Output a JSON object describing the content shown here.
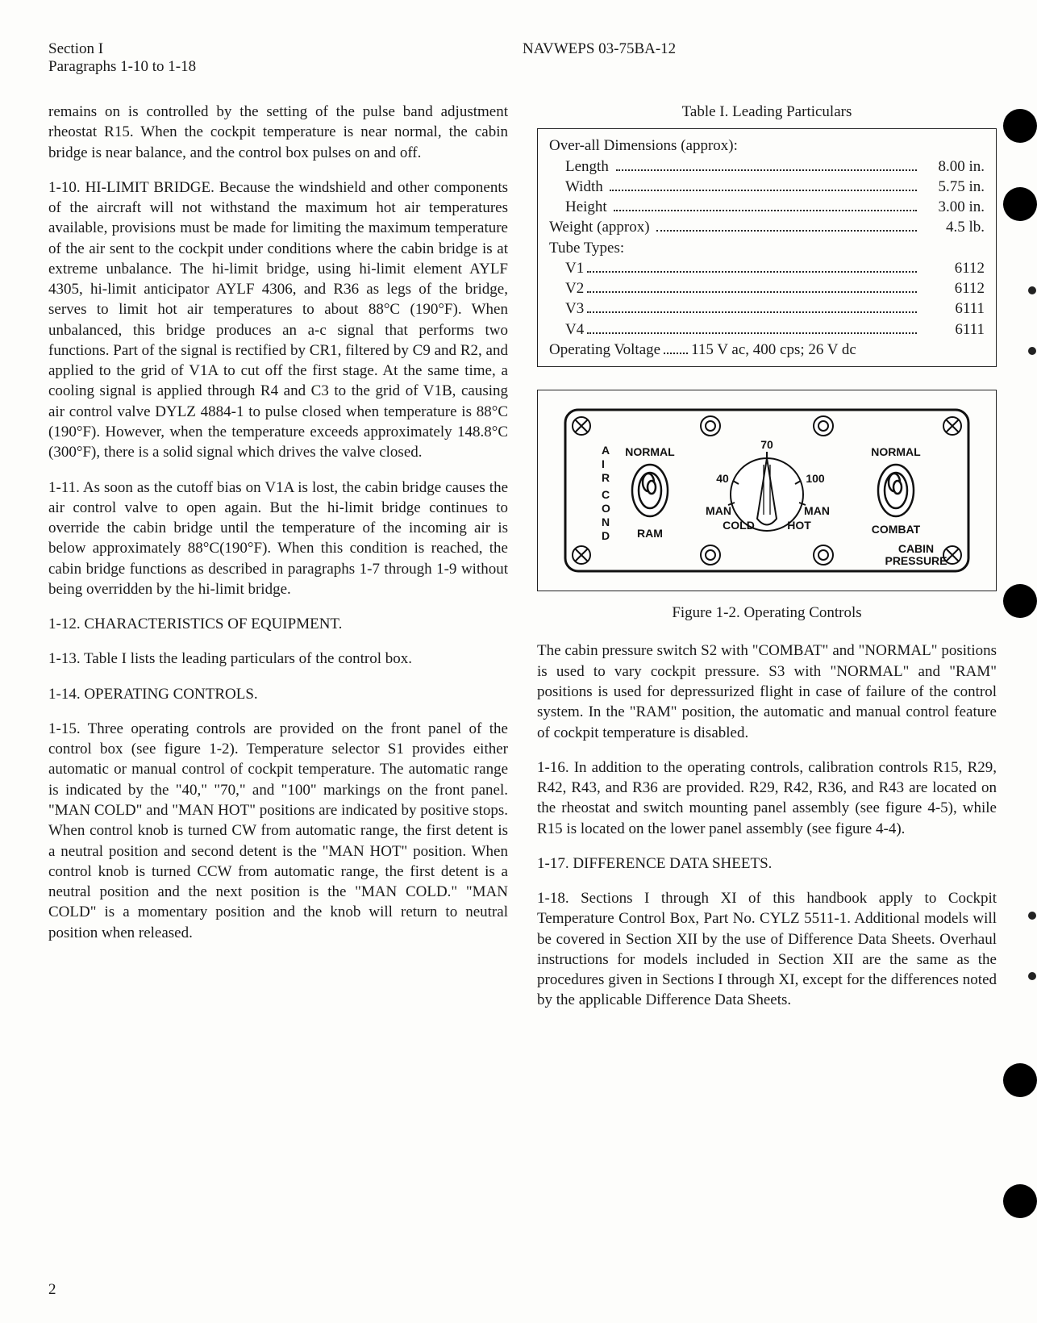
{
  "header": {
    "section": "Section I",
    "paragraphs": "Paragraphs 1-10 to 1-18",
    "docnum": "NAVWEPS 03-75BA-12"
  },
  "page_number": "2",
  "left": {
    "p0": "remains on is controlled by the setting of the pulse band adjustment rheostat R15. When the cockpit temperature is near normal, the cabin bridge is near balance, and the control box pulses on and off.",
    "p1": "1-10. HI-LIMIT BRIDGE. Because the windshield and other components of the aircraft will not withstand the maximum hot air temperatures available, provisions must be made for limiting the maximum temperature of the air sent to the cockpit under conditions where the cabin bridge is at extreme unbalance. The hi-limit bridge, using hi-limit element AYLF 4305, hi-limit anticipator AYLF 4306, and R36 as legs of the bridge, serves to limit hot air temperatures to about 88°C (190°F). When unbalanced, this bridge produces an a-c signal that performs two functions. Part of the signal is rectified by CR1, filtered by C9 and R2, and applied to the grid of V1A to cut off the first stage. At the same time, a cooling signal is applied through R4 and C3 to the grid of V1B, causing air control valve DYLZ 4884-1 to pulse closed when temperature is 88°C (190°F). However, when the temperature exceeds approximately 148.8°C (300°F), there is a solid signal which drives the valve closed.",
    "p2": "1-11. As soon as the cutoff bias on V1A is lost, the cabin bridge causes the air control valve to open again. But the hi-limit bridge continues to override the cabin bridge until the temperature of the incoming air is below approximately 88°C(190°F). When this condition is reached, the cabin bridge functions as described in paragraphs 1-7 through 1-9 without being overridden by the hi-limit bridge.",
    "h1": "1-12. CHARACTERISTICS OF EQUIPMENT.",
    "p3": "1-13. Table I lists the leading particulars of the control box.",
    "h2": "1-14. OPERATING CONTROLS.",
    "p4": "1-15. Three operating controls are provided on the front panel of the control box (see figure 1-2). Temperature selector S1 provides either automatic or manual control of cockpit temperature. The automatic range is indicated by the \"40,\" \"70,\" and \"100\" markings on the front panel. \"MAN COLD\" and \"MAN HOT\" positions are indicated by positive stops. When control knob is turned CW from automatic range, the first detent is a neutral position and second detent is the \"MAN HOT\" position. When control knob is turned CCW from automatic range, the first detent is a neutral position and the next position is the \"MAN COLD.\" \"MAN COLD\" is a momentary position and the knob will return to neutral position when released."
  },
  "table": {
    "title": "Table I. Leading Particulars",
    "heading1": "Over-all Dimensions (approx):",
    "rows": [
      {
        "label": "Length",
        "value": "8.00 in.",
        "indent": true
      },
      {
        "label": "Width",
        "value": "5.75 in.",
        "indent": true
      },
      {
        "label": "Height",
        "value": "3.00 in.",
        "indent": true
      },
      {
        "label": "Weight (approx)",
        "value": "4.5 lb.",
        "indent": false
      }
    ],
    "heading2": "Tube Types:",
    "tubes": [
      {
        "label": "V1",
        "value": "6112"
      },
      {
        "label": "V2",
        "value": "6112"
      },
      {
        "label": "V3",
        "value": "6111"
      },
      {
        "label": "V4",
        "value": "6111"
      }
    ],
    "op_label": "Operating Voltage",
    "op_value": "115 V ac, 400 cps; 26 V dc"
  },
  "figure": {
    "caption": "Figure 1-2. Operating Controls",
    "labels": {
      "vert": "AIR COND",
      "normal_l": "NORMAL",
      "normal_r": "NORMAL",
      "seventy": "70",
      "forty": "40",
      "hundred": "100",
      "man_l": "MAN",
      "man_r": "MAN",
      "cold": "COLD",
      "hot": "HOT",
      "ram": "RAM",
      "combat": "COMBAT",
      "cabin": "CABIN",
      "pressure": "PRESSURE"
    }
  },
  "right": {
    "p1": "The cabin pressure switch S2 with \"COMBAT\" and \"NORMAL\" positions is used to vary cockpit pressure. S3 with \"NORMAL\" and \"RAM\" positions is used for depressurized flight in case of failure of the control system. In the \"RAM\" position, the automatic and manual control feature of cockpit temperature is disabled.",
    "p2": "1-16. In addition to the operating controls, calibration controls R15, R29, R42, R43, and R36 are provided. R29, R42, R36, and R43 are located on the rheostat and switch mounting panel assembly (see figure 4-5), while R15 is located on the lower panel assembly (see figure 4-4).",
    "h1": "1-17. DIFFERENCE DATA SHEETS.",
    "p3": "1-18. Sections I through XI of this handbook apply to Cockpit Temperature Control Box, Part No. CYLZ 5511-1. Additional models will be covered in Section XII by the use of Difference Data Sheets. Overhaul instructions for models included in Section XII are the same as the procedures given in Sections I through XI, except for the differences noted by the applicable Difference Data Sheets."
  }
}
